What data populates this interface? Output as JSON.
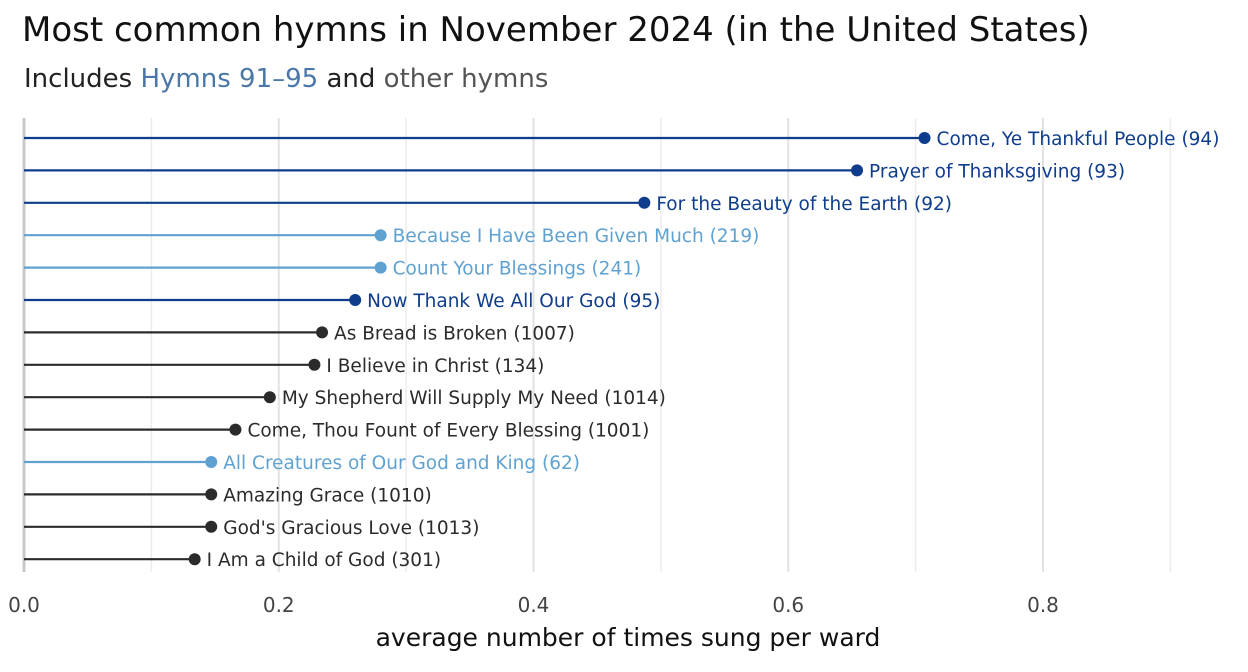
{
  "chart_data": {
    "type": "lollipop",
    "title": "Most common hymns in November 2024 (in the United States)",
    "subtitle_prefix": "Includes ",
    "subtitle_highlight": "Hymns 91–95",
    "subtitle_middle": " and ",
    "subtitle_other": "other hymns",
    "xlabel": "average number of times sung per ward",
    "xlim": [
      0,
      0.94
    ],
    "x_ticks": [
      "0.0",
      "0.2",
      "0.4",
      "0.6",
      "0.8"
    ],
    "x_tick_values": [
      0.0,
      0.2,
      0.4,
      0.6,
      0.8
    ],
    "grid": true,
    "colors": {
      "hymns_91_95": "#0f3d8c",
      "light": "#5fa2d1",
      "other": "#2b2b2b"
    },
    "categories": [
      "Come, Ye Thankful People (94)",
      "Prayer of Thanksgiving (93)",
      "For the Beauty of the Earth (92)",
      "Because I Have Been Given Much (219)",
      "Count Your Blessings (241)",
      "Now Thank We All Our God (95)",
      "As Bread is Broken (1007)",
      "I Believe in Christ (134)",
      "My Shepherd Will Supply My Need (1014)",
      "Come, Thou Fount of Every Blessing (1001)",
      "All Creatures of Our God and King (62)",
      "Amazing Grace (1010)",
      "God's Gracious Love (1013)",
      "I Am a Child of God (301)"
    ],
    "values": [
      0.707,
      0.654,
      0.487,
      0.28,
      0.28,
      0.26,
      0.234,
      0.228,
      0.193,
      0.166,
      0.147,
      0.147,
      0.147,
      0.134
    ],
    "groups": [
      "hymns_91_95",
      "hymns_91_95",
      "hymns_91_95",
      "light",
      "light",
      "hymns_91_95",
      "other",
      "other",
      "other",
      "other",
      "light",
      "other",
      "other",
      "other"
    ]
  }
}
